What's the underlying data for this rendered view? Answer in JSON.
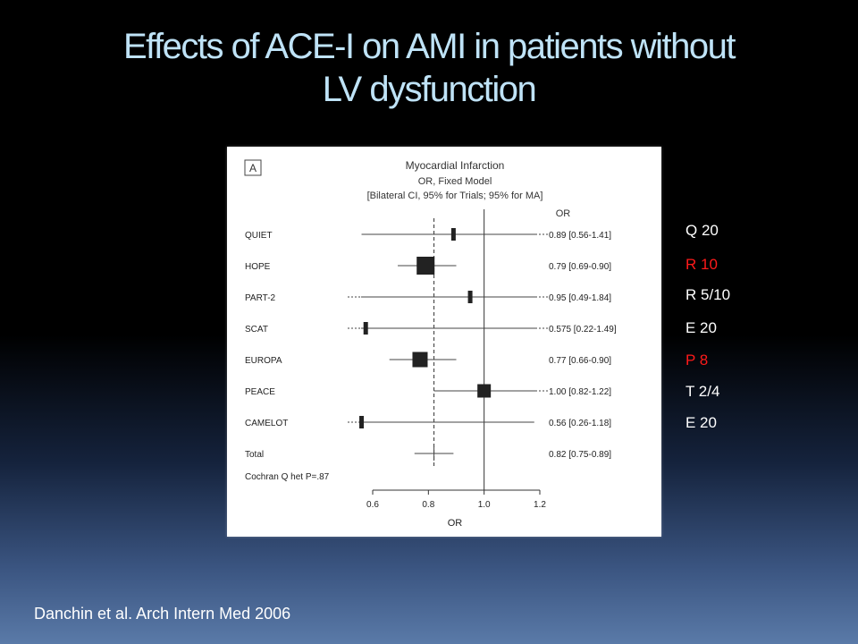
{
  "slide": {
    "title_line1": "Effects of ACE-I on AMI in patients without",
    "title_line2": "LV dysfunction",
    "citation": "Danchin et al. Arch Intern Med 2006",
    "title_color": "#bfe3f7"
  },
  "side_notes": [
    {
      "text": "Q 20",
      "color": "#ffffff"
    },
    {
      "text": "R 10",
      "color": "#ff1a1a"
    },
    {
      "text": "R 5/10",
      "color": "#ffffff"
    },
    {
      "text": "E 20",
      "color": "#ffffff"
    },
    {
      "text": "P 8",
      "color": "#ff1a1a"
    },
    {
      "text": "T 2/4",
      "color": "#ffffff"
    },
    {
      "text": "E 20",
      "color": "#ffffff"
    }
  ],
  "chart_data": {
    "type": "forest",
    "panel_label": "A",
    "title": "Myocardial Infarction",
    "subtitle": "OR, Fixed Model",
    "subtitle2": "[Bilateral CI, 95% for Trials; 95% for MA]",
    "column_header": "OR",
    "xlabel": "OR",
    "xlim": [
      0.6,
      1.2
    ],
    "xticks": [
      0.6,
      0.8,
      1.0,
      1.2
    ],
    "xtick_labels": [
      "0.6",
      "0.8",
      "1.0",
      "1.2"
    ],
    "reference_line": 1.0,
    "pooled_line": 0.82,
    "heterogeneity": "Cochran Q het P=.87",
    "studies": [
      {
        "name": "QUIET",
        "or": 0.89,
        "lo": 0.56,
        "hi": 1.41,
        "label": "0.89 [0.56-1.41]",
        "weight": 0.25
      },
      {
        "name": "HOPE",
        "or": 0.79,
        "lo": 0.69,
        "hi": 0.9,
        "label": "0.79 [0.69-0.90]",
        "weight": 1.0
      },
      {
        "name": "PART-2",
        "or": 0.95,
        "lo": 0.49,
        "hi": 1.84,
        "label": "0.95 [0.49-1.84]",
        "weight": 0.2
      },
      {
        "name": "SCAT",
        "or": 0.575,
        "lo": 0.22,
        "hi": 1.49,
        "label": "0.575 [0.22-1.49]",
        "weight": 0.2
      },
      {
        "name": "EUROPA",
        "or": 0.77,
        "lo": 0.66,
        "hi": 0.9,
        "label": "0.77 [0.66-0.90]",
        "weight": 0.85
      },
      {
        "name": "PEACE",
        "or": 1.0,
        "lo": 0.82,
        "hi": 1.22,
        "label": "1.00 [0.82-1.22]",
        "weight": 0.75
      },
      {
        "name": "CAMELOT",
        "or": 0.56,
        "lo": 0.26,
        "hi": 1.18,
        "label": "0.56 [0.26-1.18]",
        "weight": 0.2
      },
      {
        "name": "Total",
        "or": 0.82,
        "lo": 0.75,
        "hi": 0.89,
        "label": "0.82 [0.75-0.89]",
        "weight": 0
      }
    ]
  }
}
